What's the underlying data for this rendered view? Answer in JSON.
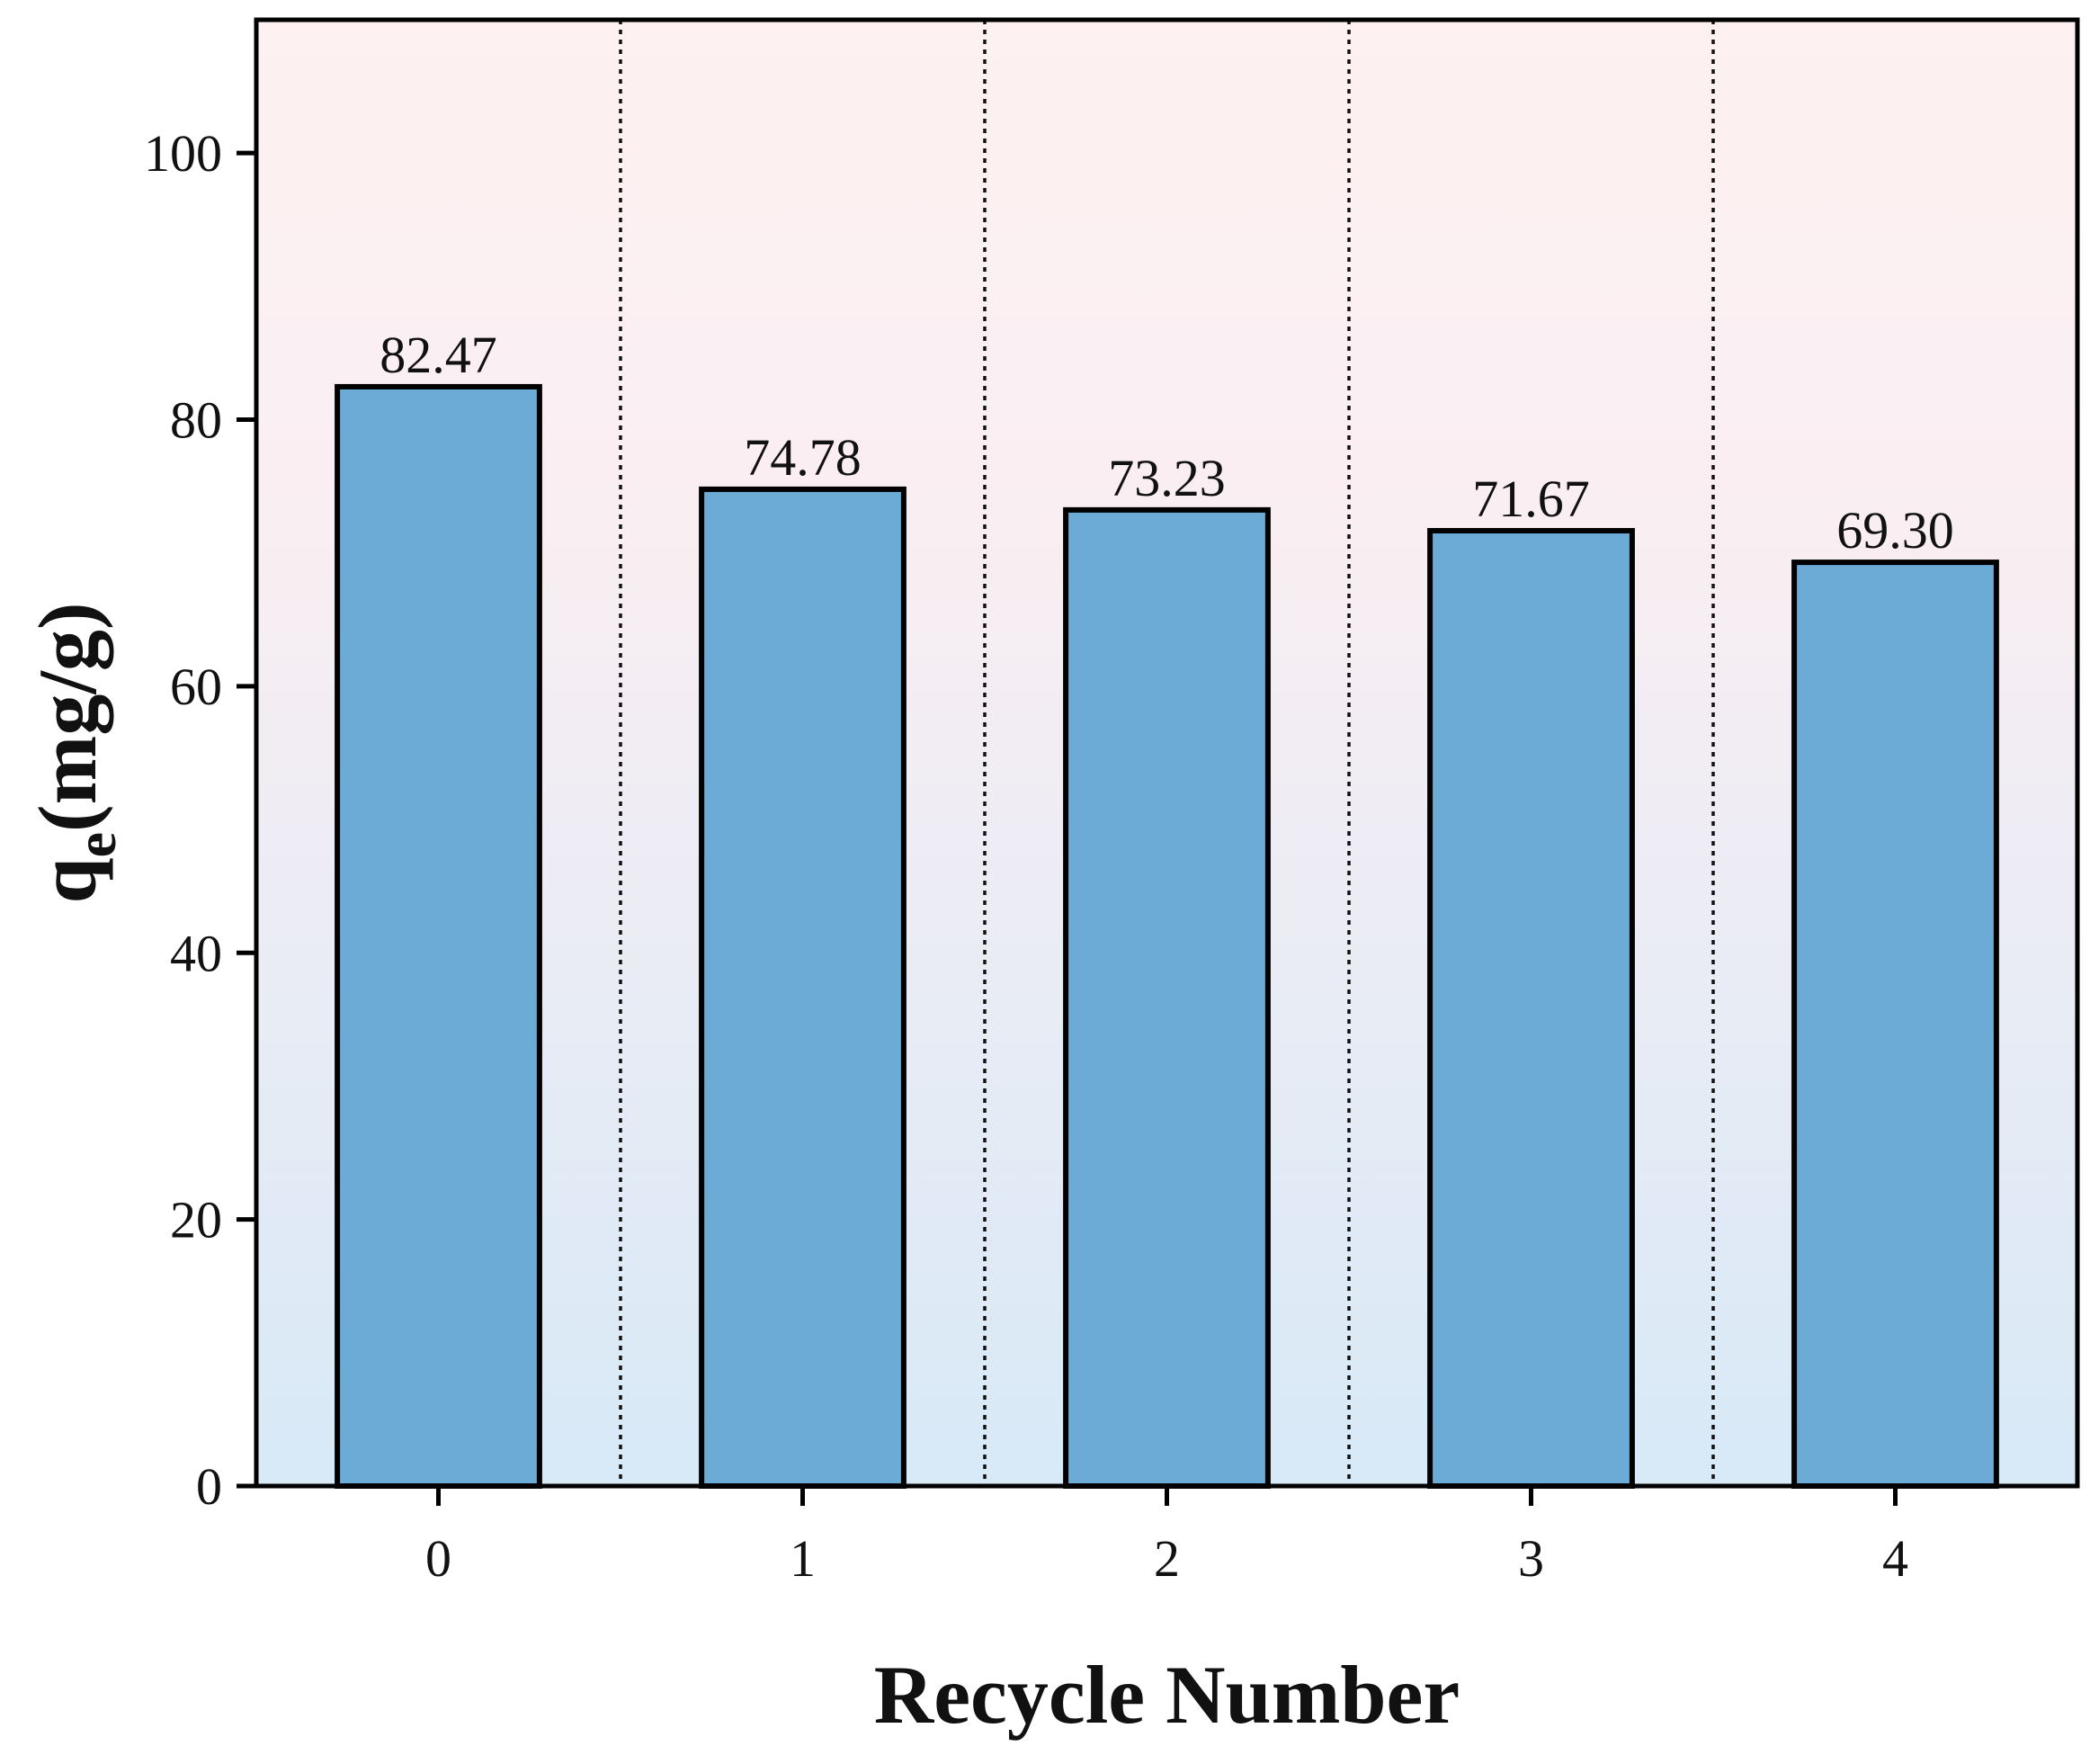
{
  "chart_data": {
    "type": "bar",
    "categories": [
      "0",
      "1",
      "2",
      "3",
      "4"
    ],
    "values": [
      82.47,
      74.78,
      73.23,
      71.67,
      69.3
    ],
    "data_labels": [
      "82.47",
      "74.78",
      "73.23",
      "71.67",
      "69.30"
    ],
    "title": "",
    "xlabel": "Recycle Number",
    "ylabel": {
      "main": "q",
      "subscript": "e",
      "unit": "(mg/g)"
    },
    "ylim": [
      0,
      110
    ],
    "yticks": [
      0,
      20,
      40,
      60,
      80,
      100
    ],
    "grid": "dotted vertical separators between categories",
    "legend": "none",
    "colors": {
      "bar_fill": "#6babd6",
      "bar_edge": "#000000",
      "background_top": "#fdf1f1",
      "background_bottom": "#d7e9f7"
    }
  }
}
